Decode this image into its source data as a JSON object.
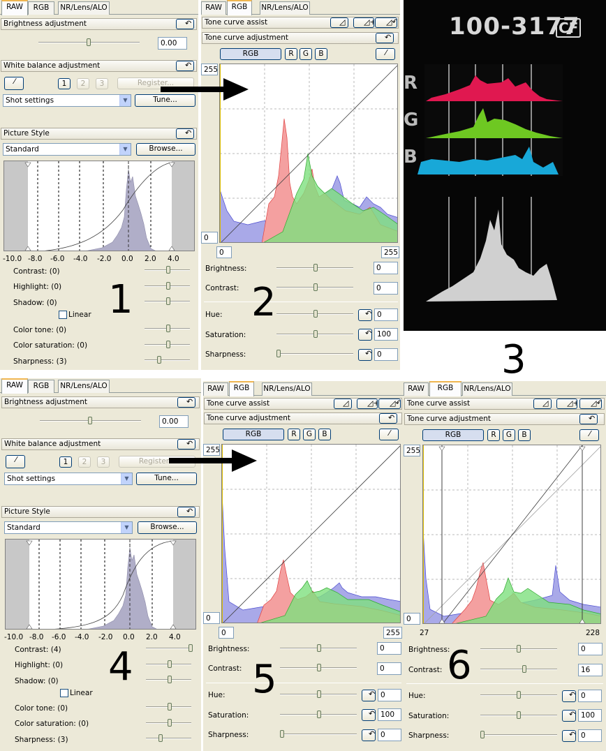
{
  "tabs": {
    "raw": "RAW",
    "rgb": "RGB",
    "nr": "NR/Lens/ALO"
  },
  "p1": {
    "brightness_title": "Brightness adjustment",
    "brightness_value": "0.00",
    "wb_title": "White balance adjustment",
    "wb_slots": [
      "1",
      "2",
      "3"
    ],
    "register": "Register...",
    "shot_settings": "Shot settings",
    "tune": "Tune...",
    "ps_title": "Picture Style",
    "standard": "Standard",
    "browse": "Browse...",
    "axis_ticks": [
      "-10.0",
      "-8.0",
      "-6.0",
      "-4.0",
      "-2.0",
      "0.0",
      "2.0",
      "4.0"
    ],
    "contrast": "Contrast: (0)",
    "highlight": "Highlight: (0)",
    "shadow": "Shadow: (0)",
    "linear": "Linear",
    "color_tone": "Color tone: (0)",
    "color_saturation": "Color saturation: (0)",
    "sharpness": "Sharpness: (3)",
    "number": "1"
  },
  "p2": {
    "assist": "Tone curve assist",
    "adjust": "Tone curve adjustment",
    "channels": [
      "RGB",
      "R",
      "G",
      "B"
    ],
    "y_max": "255",
    "y_min": "0",
    "x_min": "0",
    "x_max": "255",
    "brightness_label": "Brightness:",
    "brightness_value": "0",
    "contrast_label": "Contrast:",
    "contrast_value": "0",
    "hue_label": "Hue:",
    "hue_value": "0",
    "saturation_label": "Saturation:",
    "saturation_value": "100",
    "sharpness_label": "Sharpness:",
    "sharpness_value": "0",
    "number": "2"
  },
  "p3": {
    "label": "100-3177",
    "badge": "CF",
    "channels": [
      "R",
      "G",
      "B"
    ],
    "number": "3"
  },
  "p4": {
    "brightness_title": "Brightness adjustment",
    "brightness_value": "0.00",
    "wb_title": "White balance adjustment",
    "wb_slots": [
      "1",
      "2",
      "3"
    ],
    "register": "Register...",
    "shot_settings": "Shot settings",
    "tune": "Tune...",
    "ps_title": "Picture Style",
    "standard": "Standard",
    "browse": "Browse...",
    "axis_ticks": [
      "-10.0",
      "-8.0",
      "-6.0",
      "-4.0",
      "-2.0",
      "0.0",
      "2.0",
      "4.0"
    ],
    "contrast": "Contrast: (4)",
    "highlight": "Highlight: (0)",
    "shadow": "Shadow: (0)",
    "linear": "Linear",
    "color_tone": "Color tone: (0)",
    "color_saturation": "Color saturation: (0)",
    "sharpness": "Sharpness: (3)",
    "number": "4"
  },
  "p5": {
    "assist": "Tone curve assist",
    "adjust": "Tone curve adjustment",
    "channels": [
      "RGB",
      "R",
      "G",
      "B"
    ],
    "y_max": "255",
    "y_min": "0",
    "x_min": "0",
    "x_max": "255",
    "brightness_label": "Brightness:",
    "brightness_value": "0",
    "contrast_label": "Contrast:",
    "contrast_value": "0",
    "hue_label": "Hue:",
    "hue_value": "0",
    "saturation_label": "Saturation:",
    "saturation_value": "100",
    "sharpness_label": "Sharpness:",
    "sharpness_value": "0",
    "number": "5"
  },
  "p6": {
    "assist": "Tone curve assist",
    "adjust": "Tone curve adjustment",
    "channels": [
      "RGB",
      "R",
      "G",
      "B"
    ],
    "y_max": "255",
    "y_min": "0",
    "x_min": "27",
    "x_max": "228",
    "brightness_label": "Brightness:",
    "brightness_value": "0",
    "contrast_label": "Contrast:",
    "contrast_value": "16",
    "hue_label": "Hue:",
    "hue_value": "0",
    "saturation_label": "Saturation:",
    "saturation_value": "100",
    "sharpness_label": "Sharpness:",
    "sharpness_value": "0",
    "number": "6"
  },
  "colors": {
    "panel": "#ece9d8",
    "red_hist": "#f08080",
    "green_hist": "#66dd55",
    "blue_hist": "#a9a9e8",
    "gray_hist": "#b0aec8"
  }
}
